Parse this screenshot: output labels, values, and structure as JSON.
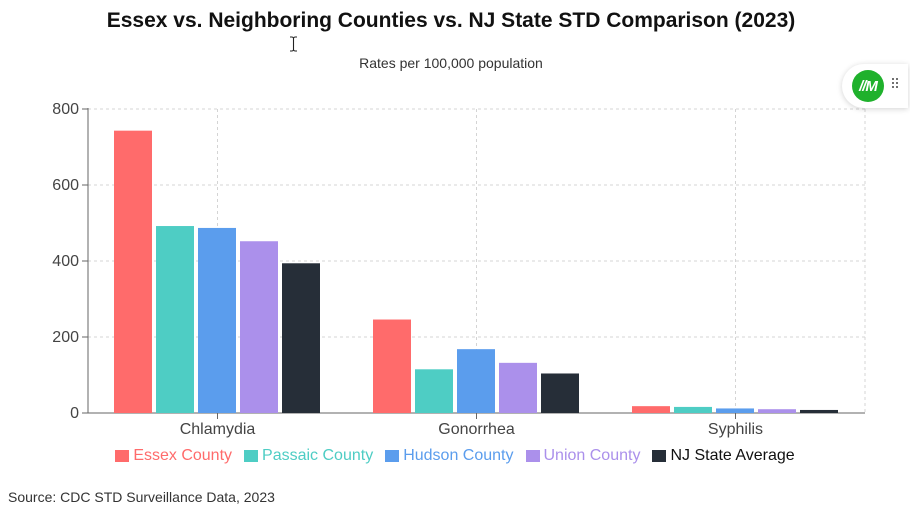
{
  "chart_data": {
    "type": "bar",
    "title": "Essex vs. Neighboring Counties vs. NJ State STD Comparison (2023)",
    "subtitle": "Rates per 100,000 population",
    "categories": [
      "Chlamydia",
      "Gonorrhea",
      "Syphilis"
    ],
    "series": [
      {
        "name": "Essex County",
        "color": "#ff6b6b",
        "values": [
          743,
          246,
          18
        ]
      },
      {
        "name": "Passaic County",
        "color": "#4ecdc4",
        "values": [
          492,
          115,
          16
        ]
      },
      {
        "name": "Hudson County",
        "color": "#5b9ded",
        "values": [
          487,
          168,
          12
        ]
      },
      {
        "name": "Union County",
        "color": "#ab90eb",
        "values": [
          452,
          132,
          10
        ]
      },
      {
        "name": "NJ State Average",
        "color": "#262e38",
        "values": [
          394,
          104,
          8
        ]
      }
    ],
    "ylim": [
      0,
      800
    ],
    "yticks": [
      "0",
      "200",
      "400",
      "600",
      "800"
    ],
    "xlabel": "",
    "ylabel": "",
    "grid": true,
    "legend_position": "bottom"
  },
  "source": "Source: CDC STD Surveillance Data, 2023",
  "widget": {
    "logo_text": "//M",
    "logo_icon": "m-logo-icon",
    "grip_icon": "drag-grip-icon"
  }
}
